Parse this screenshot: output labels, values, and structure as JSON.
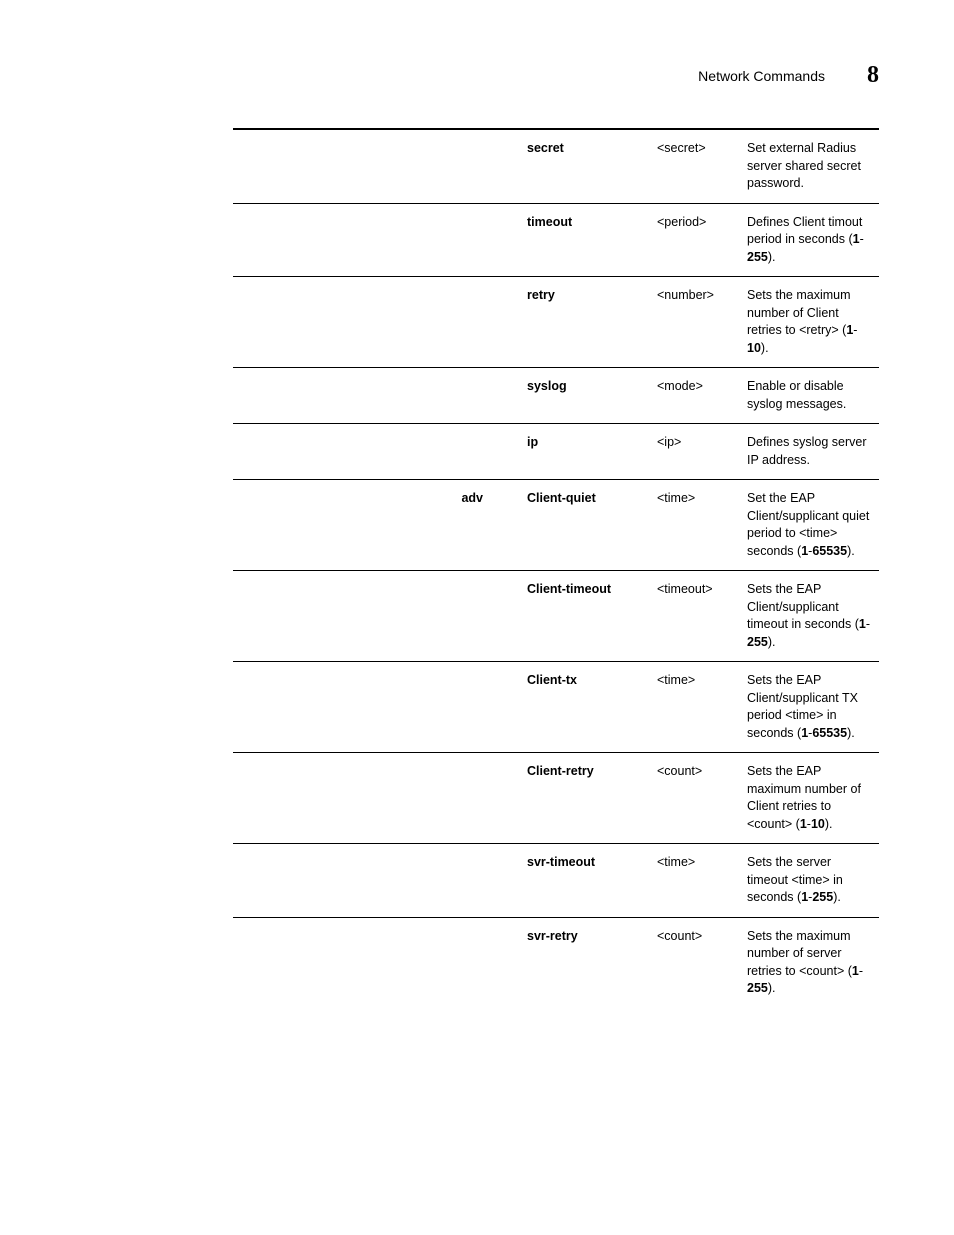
{
  "header": {
    "title": "Network Commands",
    "number": "8"
  },
  "rows": [
    {
      "col1": "",
      "col2_bold": "secret",
      "col3": "<secret>",
      "col4": [
        {
          "t": "Set external Radius server shared secret password."
        }
      ]
    },
    {
      "col1": "",
      "col2_bold": "timeout",
      "col3": "<period>",
      "col4": [
        {
          "t": "Defines Client timout period in seconds ("
        },
        {
          "t": "1",
          "b": true
        },
        {
          "t": "-"
        },
        {
          "t": "255",
          "b": true
        },
        {
          "t": ")."
        }
      ]
    },
    {
      "col1": "",
      "col2_bold": "retry",
      "col3": "<number>",
      "col4": [
        {
          "t": "Sets the maximum number of Client retries to <retry> ("
        },
        {
          "t": "1",
          "b": true
        },
        {
          "t": "-"
        },
        {
          "t": "10",
          "b": true
        },
        {
          "t": ")."
        }
      ]
    },
    {
      "col1": "",
      "col2_bold": "syslog",
      "col3": "<mode>",
      "col4": [
        {
          "t": "Enable or disable syslog messages."
        }
      ]
    },
    {
      "col1": "",
      "col2_bold": "ip",
      "col3": "<ip>",
      "col4": [
        {
          "t": "Defines syslog server IP address."
        }
      ]
    },
    {
      "col1": "adv",
      "col2_bold": "Client-quiet",
      "col3": "<time>",
      "col4": [
        {
          "t": "Set the EAP Client/supplicant quiet period to <time> seconds ("
        },
        {
          "t": "1",
          "b": true
        },
        {
          "t": "-"
        },
        {
          "t": "65535",
          "b": true
        },
        {
          "t": ")."
        }
      ]
    },
    {
      "col1": "",
      "col2_bold": "Client-timeout",
      "col3": "<timeout>",
      "col4": [
        {
          "t": "Sets the EAP Client/supplicant timeout in seconds ("
        },
        {
          "t": "1",
          "b": true
        },
        {
          "t": "-"
        },
        {
          "t": "255",
          "b": true
        },
        {
          "t": ")."
        }
      ]
    },
    {
      "col1": "",
      "col2_bold": "Client-tx",
      "col3": "<time>",
      "col4": [
        {
          "t": "Sets the EAP Client/supplicant TX period <time> in seconds ("
        },
        {
          "t": "1",
          "b": true
        },
        {
          "t": "-"
        },
        {
          "t": "65535",
          "b": true
        },
        {
          "t": ")."
        }
      ]
    },
    {
      "col1": "",
      "col2_bold": "Client-retry",
      "col3": "<count>",
      "col4": [
        {
          "t": "Sets the EAP maximum number of Client retries to <count> ("
        },
        {
          "t": "1",
          "b": true
        },
        {
          "t": "-"
        },
        {
          "t": "10",
          "b": true
        },
        {
          "t": ")."
        }
      ]
    },
    {
      "col1": "",
      "col2_bold": "svr-timeout",
      "col3": "<time>",
      "col4": [
        {
          "t": "Sets the server timeout <time> in seconds ("
        },
        {
          "t": "1",
          "b": true
        },
        {
          "t": "-"
        },
        {
          "t": "255",
          "b": true
        },
        {
          "t": ")."
        }
      ]
    },
    {
      "col1": "",
      "col2_bold": "svr-retry",
      "col3": "<count>",
      "col4": [
        {
          "t": "Sets the maximum number of server retries to <count> ("
        },
        {
          "t": "1",
          "b": true
        },
        {
          "t": "-"
        },
        {
          "t": "255",
          "b": true
        },
        {
          "t": ")."
        }
      ]
    }
  ]
}
